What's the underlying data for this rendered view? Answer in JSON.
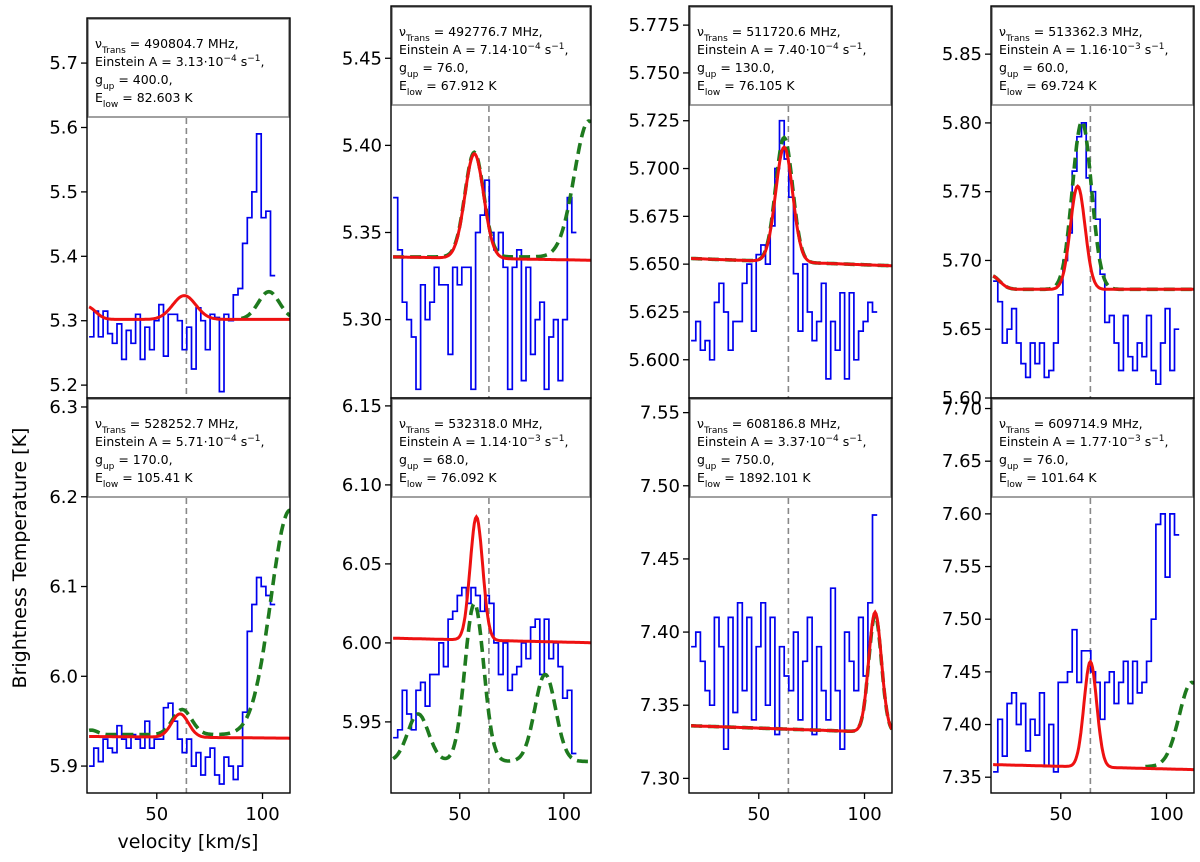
{
  "figure": {
    "ylabel": "Brightness Temperature [K]",
    "xlabel": "velocity [km/s]"
  },
  "colors": {
    "observed": "#0000ee",
    "fit": "#ee1111",
    "model": "#1e7a1e",
    "vline": "#888888",
    "infobox": "#888888"
  },
  "chart_data": [
    {
      "type": "line",
      "info": [
        "ν_Trans = 490804.7 MHz,",
        "Einstein A = 3.13·10^-4 s^-1,",
        "g_up = 400.0,",
        "E_low = 82.603 K"
      ],
      "xlim": [
        17,
        113
      ],
      "ylim": [
        5.18,
        5.77
      ],
      "yticks": [
        5.2,
        5.3,
        5.4,
        5.5,
        5.6,
        5.7
      ],
      "xticks": [
        50,
        100
      ],
      "vline": 64,
      "observed": {
        "x0": 18,
        "dx": 2.2,
        "y": [
          5.275,
          5.315,
          5.275,
          5.315,
          5.28,
          5.265,
          5.295,
          5.24,
          5.285,
          5.265,
          5.31,
          5.24,
          5.29,
          5.255,
          5.3,
          5.325,
          5.245,
          5.31,
          5.31,
          5.3,
          5.255,
          5.29,
          5.225,
          5.32,
          5.3,
          5.255,
          5.31,
          5.305,
          5.19,
          5.31,
          5.3,
          5.34,
          5.35,
          5.42,
          5.46,
          5.5,
          5.59,
          5.46,
          5.47,
          5.37
        ]
      },
      "model": {
        "base": 5.302,
        "peaks": [
          [
            63,
            5.5,
            0.037
          ],
          [
            103,
            5.0,
            0.043
          ]
        ],
        "x_from": 90
      },
      "fit": {
        "base": 5.302,
        "peaks": [
          [
            63,
            5.5,
            0.037
          ]
        ],
        "left_bump": [
          17,
          4,
          0.02
        ]
      }
    },
    {
      "type": "line",
      "info": [
        "ν_Trans = 492776.7 MHz,",
        "Einstein A = 7.14·10^-4 s^-1,",
        "g_up = 76.0,",
        "E_low = 67.912 K"
      ],
      "xlim": [
        17,
        113
      ],
      "ylim": [
        5.255,
        5.48
      ],
      "yticks": [
        5.3,
        5.35,
        5.4,
        5.45
      ],
      "xticks": [
        50,
        100
      ],
      "vline": 64,
      "observed": {
        "x0": 18,
        "dx": 2.2,
        "y": [
          5.37,
          5.34,
          5.31,
          5.3,
          5.29,
          5.26,
          5.32,
          5.3,
          5.31,
          5.33,
          5.32,
          5.32,
          5.28,
          5.33,
          5.32,
          5.33,
          5.33,
          5.26,
          5.35,
          5.36,
          5.38,
          5.35,
          5.34,
          5.35,
          5.33,
          5.26,
          5.33,
          5.34,
          5.265,
          5.33,
          5.28,
          5.3,
          5.31,
          5.26,
          5.29,
          5.3,
          5.265,
          5.3,
          5.37,
          5.35
        ]
      },
      "model": {
        "base": 5.336,
        "peaks": [
          [
            57,
            4.5,
            0.06
          ],
          [
            112,
            7,
            0.078
          ]
        ],
        "x_from": 17
      },
      "fit": {
        "base": 5.336,
        "slope": -2e-05,
        "peaks": [
          [
            57,
            4.5,
            0.06
          ]
        ]
      }
    },
    {
      "type": "line",
      "info": [
        "ν_Trans = 511720.6 MHz,",
        "Einstein A = 7.40·10^-4 s^-1,",
        "g_up = 130.0,",
        "E_low = 76.105 K"
      ],
      "xlim": [
        17,
        113
      ],
      "ylim": [
        5.58,
        5.785
      ],
      "yticks": [
        5.6,
        5.625,
        5.65,
        5.675,
        5.7,
        5.725,
        5.75,
        5.775
      ],
      "xticks": [
        50,
        100
      ],
      "vline": 64,
      "observed": {
        "x0": 18,
        "dx": 2.2,
        "y": [
          5.61,
          5.62,
          5.605,
          5.61,
          5.6,
          5.63,
          5.64,
          5.625,
          5.605,
          5.62,
          5.62,
          5.64,
          5.65,
          5.615,
          5.655,
          5.66,
          5.65,
          5.67,
          5.7,
          5.725,
          5.705,
          5.685,
          5.645,
          5.615,
          5.65,
          5.625,
          5.61,
          5.62,
          5.64,
          5.59,
          5.62,
          5.605,
          5.635,
          5.59,
          5.635,
          5.6,
          5.615,
          5.62,
          5.63,
          5.625
        ]
      },
      "model": {
        "base": 5.653,
        "slope": -4e-05,
        "peaks": [
          [
            62,
            4,
            0.065
          ]
        ],
        "x_from": 17
      },
      "fit": {
        "base": 5.653,
        "slope": -4e-05,
        "peaks": [
          [
            62,
            4,
            0.06
          ]
        ]
      }
    },
    {
      "type": "line",
      "info": [
        "ν_Trans = 513362.3 MHz,",
        "Einstein A = 1.16·10^-3 s^-1,",
        "g_up = 60.0,",
        "E_low = 69.724 K"
      ],
      "xlim": [
        17,
        113
      ],
      "ylim": [
        5.6,
        5.885
      ],
      "yticks": [
        5.6,
        5.65,
        5.7,
        5.75,
        5.8,
        5.85
      ],
      "xticks": [
        50,
        100
      ],
      "vline": 64,
      "observed": {
        "x0": 18,
        "dx": 2.2,
        "y": [
          5.685,
          5.67,
          5.64,
          5.65,
          5.665,
          5.64,
          5.625,
          5.615,
          5.64,
          5.625,
          5.64,
          5.615,
          5.62,
          5.64,
          5.675,
          5.7,
          5.72,
          5.765,
          5.79,
          5.8,
          5.76,
          5.75,
          5.73,
          5.69,
          5.655,
          5.66,
          5.64,
          5.62,
          5.66,
          5.63,
          5.62,
          5.64,
          5.63,
          5.66,
          5.62,
          5.61,
          5.64,
          5.665,
          5.62,
          5.65
        ]
      },
      "model": {
        "base": 5.679,
        "peaks": [
          [
            60,
            4.5,
            0.122
          ]
        ],
        "left_bump": [
          17,
          4,
          0.01
        ],
        "x_from": 17
      },
      "fit": {
        "base": 5.679,
        "peaks": [
          [
            58,
            3.5,
            0.075
          ]
        ],
        "left_bump": [
          17,
          4,
          0.01
        ]
      }
    },
    {
      "type": "line",
      "info": [
        "ν_Trans = 528252.7 MHz,",
        "Einstein A = 5.71·10^-4 s^-1,",
        "g_up = 170.0,",
        "E_low = 105.41 K"
      ],
      "xlim": [
        17,
        113
      ],
      "ylim": [
        5.87,
        6.31
      ],
      "yticks": [
        5.9,
        6.0,
        6.1,
        6.2,
        6.3
      ],
      "xticks": [
        50,
        100
      ],
      "vline": 64,
      "observed": {
        "x0": 18,
        "dx": 2.2,
        "y": [
          5.9,
          5.92,
          5.905,
          5.93,
          5.92,
          5.915,
          5.945,
          5.93,
          5.92,
          5.935,
          5.93,
          5.92,
          5.95,
          5.92,
          5.93,
          5.93,
          5.965,
          5.97,
          5.95,
          5.93,
          5.915,
          5.93,
          5.9,
          5.915,
          5.89,
          5.91,
          5.92,
          5.89,
          5.88,
          5.91,
          5.9,
          5.885,
          5.9,
          5.96,
          6.05,
          6.08,
          6.11,
          6.1,
          6.09,
          6.08
        ]
      },
      "model": {
        "base": 5.935,
        "peaks": [
          [
            62,
            4.5,
            0.028
          ],
          [
            113,
            9,
            0.25
          ]
        ],
        "left_bump": [
          19,
          3,
          0.005
        ],
        "x_from": 17
      },
      "fit": {
        "base": 5.933,
        "slope": -2e-05,
        "peaks": [
          [
            61,
            4,
            0.026
          ]
        ]
      }
    },
    {
      "type": "line",
      "info": [
        "ν_Trans = 532318.0 MHz,",
        "Einstein A = 1.14·10^-3 s^-1,",
        "g_up = 68.0,",
        "E_low = 76.092 K"
      ],
      "xlim": [
        17,
        113
      ],
      "ylim": [
        5.905,
        6.155
      ],
      "yticks": [
        5.95,
        6.0,
        6.05,
        6.1,
        6.15
      ],
      "xticks": [
        50,
        100
      ],
      "vline": 64,
      "observed": {
        "x0": 18,
        "dx": 2.2,
        "y": [
          5.94,
          5.945,
          5.97,
          5.955,
          5.945,
          5.97,
          5.975,
          5.96,
          5.98,
          5.98,
          6.0,
          5.985,
          6.015,
          6.02,
          6.03,
          6.035,
          6.025,
          6.035,
          6.03,
          6.02,
          6.03,
          6.025,
          6.0,
          5.98,
          6.0,
          5.97,
          5.98,
          5.985,
          6.0,
          5.99,
          6.01,
          6.015,
          5.98,
          6.015,
          5.99,
          6.0,
          5.985,
          5.965,
          5.97,
          5.93
        ]
      },
      "model": {
        "base": 5.925,
        "peaks": [
          [
            57,
            4.5,
            0.1
          ],
          [
            91,
            5,
            0.055
          ],
          [
            30,
            5,
            0.03
          ]
        ],
        "x_from": 17
      },
      "fit": {
        "base": 6.003,
        "slope": -3e-05,
        "peaks": [
          [
            58,
            3,
            0.078
          ]
        ]
      }
    },
    {
      "type": "line",
      "info": [
        "ν_Trans = 608186.8 MHz,",
        "Einstein A = 3.37·10^-4 s^-1,",
        "g_up = 750.0,",
        "E_low = 1892.101 K"
      ],
      "xlim": [
        17,
        113
      ],
      "ylim": [
        7.29,
        7.56
      ],
      "yticks": [
        7.3,
        7.35,
        7.4,
        7.45,
        7.5,
        7.55
      ],
      "xticks": [
        50,
        100
      ],
      "vline": 64,
      "observed": {
        "x0": 18,
        "dx": 2.2,
        "y": [
          7.39,
          7.4,
          7.38,
          7.36,
          7.35,
          7.41,
          7.39,
          7.32,
          7.41,
          7.345,
          7.42,
          7.36,
          7.41,
          7.34,
          7.39,
          7.42,
          7.35,
          7.41,
          7.33,
          7.39,
          7.37,
          7.36,
          7.4,
          7.34,
          7.38,
          7.41,
          7.33,
          7.39,
          7.36,
          7.34,
          7.43,
          7.36,
          7.32,
          7.4,
          7.38,
          7.36,
          7.41,
          7.37,
          7.42,
          7.48
        ]
      },
      "model": {
        "base": 7.336,
        "slope": -5e-05,
        "peaks": [
          [
            105,
            3,
            0.08
          ]
        ],
        "x_from": 17
      },
      "fit": {
        "base": 7.336,
        "slope": -5e-05,
        "peaks": [
          [
            105,
            3,
            0.082
          ]
        ]
      }
    },
    {
      "type": "line",
      "info": [
        "ν_Trans = 609714.9 MHz,",
        "Einstein A = 1.77·10^-3 s^-1,",
        "g_up = 76.0,",
        "E_low = 101.64 K"
      ],
      "xlim": [
        17,
        113
      ],
      "ylim": [
        7.335,
        7.71
      ],
      "yticks": [
        7.35,
        7.4,
        7.45,
        7.5,
        7.55,
        7.6,
        7.65,
        7.7
      ],
      "xticks": [
        50,
        100
      ],
      "vline": 64,
      "observed": {
        "x0": 18,
        "dx": 2.2,
        "y": [
          7.355,
          7.405,
          7.37,
          7.42,
          7.43,
          7.4,
          7.42,
          7.375,
          7.405,
          7.39,
          7.43,
          7.36,
          7.4,
          7.355,
          7.44,
          7.44,
          7.45,
          7.49,
          7.44,
          7.47,
          7.47,
          7.45,
          7.44,
          7.405,
          7.44,
          7.45,
          7.42,
          7.44,
          7.46,
          7.42,
          7.46,
          7.43,
          7.44,
          7.46,
          7.5,
          7.59,
          7.6,
          7.54,
          7.6,
          7.58
        ]
      },
      "model": {
        "base": 7.36,
        "peaks": [
          [
            64,
            3,
            0.1
          ],
          [
            112,
            6,
            0.08
          ]
        ],
        "x_from": 90
      },
      "fit": {
        "base": 7.362,
        "slope": -5e-05,
        "peaks": [
          [
            64,
            3,
            0.1
          ]
        ]
      }
    }
  ]
}
